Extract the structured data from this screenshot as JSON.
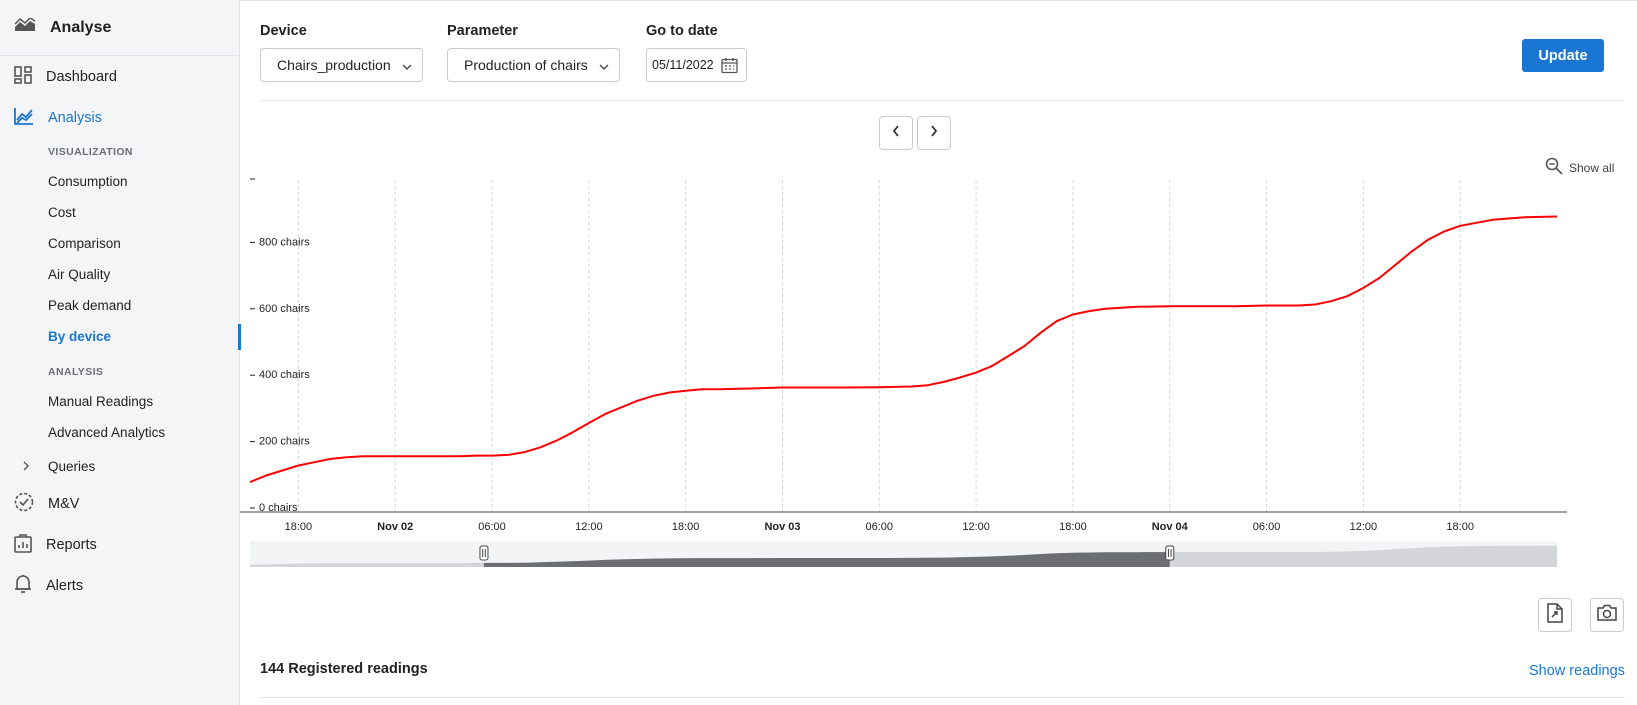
{
  "sidebar": {
    "app_title": "Analyse",
    "dashboard": "Dashboard",
    "analysis": "Analysis",
    "section_visualization": "VISUALIZATION",
    "visualization_items": [
      "Consumption",
      "Cost",
      "Comparison",
      "Air Quality",
      "Peak demand",
      "By device"
    ],
    "section_analysis": "ANALYSIS",
    "analysis_items": [
      "Manual Readings",
      "Advanced Analytics"
    ],
    "queries": "Queries",
    "mv": "M&V",
    "reports": "Reports",
    "alerts": "Alerts"
  },
  "filters": {
    "device_label": "Device",
    "device_value": "Chairs_production",
    "parameter_label": "Parameter",
    "parameter_value": "Production of chairs",
    "date_label": "Go to date",
    "date_value": "05/11/2022",
    "update_button": "Update"
  },
  "chart_toolbar": {
    "show_all": "Show all"
  },
  "chart_data": {
    "type": "line",
    "series": [
      {
        "color": "#ff0000",
        "x": [
          "Nov 01 15:00",
          "Nov 01 16:00",
          "Nov 01 17:00",
          "Nov 01 18:00",
          "Nov 01 19:00",
          "Nov 01 20:00",
          "Nov 01 21:00",
          "Nov 01 22:00",
          "Nov 02 00:00",
          "Nov 02 02:00",
          "Nov 02 04:00",
          "Nov 02 05:00",
          "Nov 02 06:00",
          "Nov 02 07:00",
          "Nov 02 08:00",
          "Nov 02 09:00",
          "Nov 02 10:00",
          "Nov 02 11:00",
          "Nov 02 12:00",
          "Nov 02 13:00",
          "Nov 02 14:00",
          "Nov 02 15:00",
          "Nov 02 16:00",
          "Nov 02 17:00",
          "Nov 02 18:00",
          "Nov 02 19:00",
          "Nov 02 20:00",
          "Nov 02 22:00",
          "Nov 03 00:00",
          "Nov 03 02:00",
          "Nov 03 04:00",
          "Nov 03 06:00",
          "Nov 03 08:00",
          "Nov 03 09:00",
          "Nov 03 10:00",
          "Nov 03 11:00",
          "Nov 03 12:00",
          "Nov 03 13:00",
          "Nov 03 14:00",
          "Nov 03 15:00",
          "Nov 03 16:00",
          "Nov 03 17:00",
          "Nov 03 18:00",
          "Nov 03 19:00",
          "Nov 03 20:00",
          "Nov 03 22:00",
          "Nov 04 00:00",
          "Nov 04 02:00",
          "Nov 04 04:00",
          "Nov 04 06:00",
          "Nov 04 08:00",
          "Nov 04 09:00",
          "Nov 04 10:00",
          "Nov 04 11:00",
          "Nov 04 12:00",
          "Nov 04 13:00",
          "Nov 04 14:00",
          "Nov 04 15:00",
          "Nov 04 16:00",
          "Nov 04 17:00",
          "Nov 04 18:00",
          "Nov 04 20:00",
          "Nov 04 22:00",
          "Nov 05 00:00"
        ],
        "y": [
          90,
          110,
          125,
          140,
          150,
          160,
          165,
          168,
          168,
          168,
          168,
          170,
          170,
          172,
          180,
          195,
          215,
          240,
          268,
          295,
          315,
          335,
          350,
          360,
          365,
          370,
          370,
          372,
          375,
          375,
          375,
          376,
          378,
          382,
          392,
          405,
          420,
          440,
          470,
          500,
          540,
          575,
          595,
          605,
          612,
          618,
          620,
          620,
          620,
          622,
          622,
          625,
          635,
          650,
          675,
          705,
          745,
          785,
          820,
          845,
          862,
          880,
          888,
          890
        ]
      }
    ],
    "x_ticks": [
      "18:00",
      "Nov 02",
      "06:00",
      "12:00",
      "18:00",
      "Nov 03",
      "06:00",
      "12:00",
      "18:00",
      "Nov 04",
      "06:00",
      "12:00",
      "18:00"
    ],
    "y_ticks": [
      "0 chairs",
      "200 chairs",
      "400 chairs",
      "600 chairs",
      "800 chairs"
    ],
    "ylim": [
      0,
      1000
    ],
    "grid": "vertical dashed",
    "navigator_range": [
      "Nov 02 05:30",
      "Nov 04 00:00"
    ]
  },
  "footer": {
    "readings_count": "144 Registered readings",
    "show_readings": "Show readings"
  },
  "colors": {
    "accent": "#1976d2",
    "series": "#ff0000"
  }
}
